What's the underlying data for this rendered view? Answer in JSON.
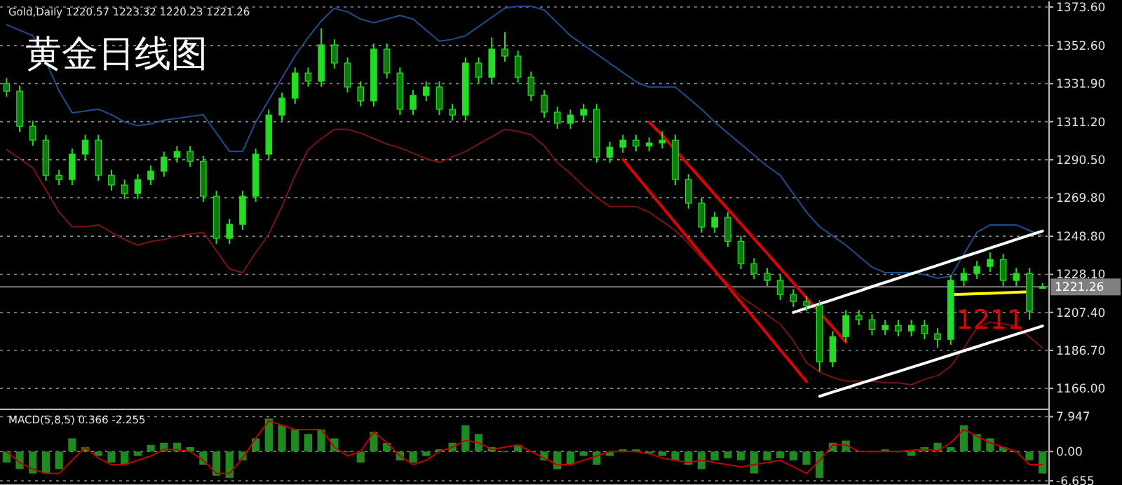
{
  "chart_data": [
    {
      "type": "candlestick",
      "title": "黄金日线图",
      "color": "#22dd22",
      "grid": "y",
      "tick_labels": "y",
      "annotations": [
        "Gold,Daily 1220.57 1223.32 1220.23 1221.26",
        {
          "text": "1211",
          "y": 1204
        }
      ],
      "ylim": [
        1155.4,
        1375.9
      ],
      "yticks": [
        {
          "value": 1373.6,
          "label": "1373.60"
        },
        {
          "value": 1352.6,
          "label": "1352.60"
        },
        {
          "value": 1331.9,
          "label": "1331.90"
        },
        {
          "value": 1311.2,
          "label": "1311.20"
        },
        {
          "value": 1290.5,
          "label": "1290.50"
        },
        {
          "value": 1269.8,
          "label": "1269.80"
        },
        {
          "value": 1248.8,
          "label": "1248.80"
        },
        {
          "value": 1228.1,
          "label": "1228.10"
        },
        {
          "value": 1207.4,
          "label": "1207.40"
        },
        {
          "value": 1186.7,
          "label": "1186.70"
        },
        {
          "value": 1166.0,
          "label": "1166.00"
        }
      ],
      "ref_lines": [
        {
          "axis": "y",
          "value": 1221.26,
          "label": "1221.26",
          "color": "#808080"
        }
      ],
      "categories": [
        null,
        null,
        null,
        null,
        null,
        null,
        null,
        null,
        null,
        null,
        null,
        null,
        null,
        null,
        null,
        null,
        null,
        null,
        null,
        null,
        null,
        null,
        null,
        null,
        null,
        null,
        null,
        null,
        null,
        null,
        null,
        null,
        null,
        null,
        null,
        null,
        null,
        null,
        null,
        null,
        null,
        null,
        null,
        null,
        null,
        null,
        null,
        null,
        null,
        null,
        null,
        null,
        null,
        null,
        null,
        null,
        null,
        null,
        null,
        null,
        null,
        null,
        null,
        null,
        null,
        null,
        null,
        null,
        null,
        null,
        null,
        null,
        null,
        null,
        null,
        null,
        null,
        null,
        null,
        null
      ],
      "ohlc": [
        [
          1332.0,
          1335.0,
          1324.8,
          1327.8
        ],
        [
          1327.8,
          1330.8,
          1305.7,
          1308.7
        ],
        [
          1308.7,
          1311.7,
          1298.1,
          1301.1
        ],
        [
          1301.1,
          1304.1,
          1279.0,
          1282.0
        ],
        [
          1282.0,
          1285.0,
          1276.7,
          1279.7
        ],
        [
          1279.7,
          1296.5,
          1276.7,
          1293.5
        ],
        [
          1293.5,
          1304.1,
          1290.5,
          1301.1
        ],
        [
          1301.1,
          1304.1,
          1279.0,
          1282.0
        ],
        [
          1282.0,
          1285.0,
          1273.7,
          1276.7
        ],
        [
          1276.7,
          1279.7,
          1269.1,
          1272.1
        ],
        [
          1272.1,
          1282.7,
          1269.1,
          1279.7
        ],
        [
          1279.7,
          1287.3,
          1276.7,
          1284.3
        ],
        [
          1284.3,
          1294.9,
          1281.3,
          1291.9
        ],
        [
          1291.9,
          1298.0,
          1288.9,
          1295.0
        ],
        [
          1295.0,
          1298.0,
          1286.6,
          1289.6
        ],
        [
          1289.6,
          1292.6,
          1267.6,
          1270.6
        ],
        [
          1270.6,
          1273.6,
          1244.7,
          1247.7
        ],
        [
          1247.7,
          1258.3,
          1244.7,
          1255.3
        ],
        [
          1255.3,
          1273.6,
          1252.3,
          1270.6
        ],
        [
          1270.6,
          1296.5,
          1267.6,
          1293.5
        ],
        [
          1293.5,
          1317.8,
          1290.5,
          1314.8
        ],
        [
          1314.8,
          1327.0,
          1311.8,
          1324.0
        ],
        [
          1324.0,
          1340.7,
          1321.0,
          1337.7
        ],
        [
          1337.7,
          1340.7,
          1330.2,
          1333.2
        ],
        [
          1333.2,
          1362.0,
          1330.2,
          1353.0
        ],
        [
          1353.0,
          1356.0,
          1340.1,
          1343.1
        ],
        [
          1343.1,
          1346.1,
          1327.1,
          1330.1
        ],
        [
          1330.1,
          1333.1,
          1319.5,
          1322.5
        ],
        [
          1322.5,
          1353.7,
          1319.5,
          1350.7
        ],
        [
          1350.7,
          1353.7,
          1334.7,
          1337.7
        ],
        [
          1337.7,
          1340.7,
          1314.9,
          1317.9
        ],
        [
          1317.9,
          1328.5,
          1314.9,
          1325.5
        ],
        [
          1325.5,
          1333.1,
          1322.5,
          1330.1
        ],
        [
          1330.1,
          1333.1,
          1314.9,
          1317.9
        ],
        [
          1317.9,
          1320.9,
          1311.8,
          1314.8
        ],
        [
          1314.8,
          1346.1,
          1311.8,
          1343.1
        ],
        [
          1343.1,
          1346.1,
          1332.4,
          1335.4
        ],
        [
          1335.4,
          1357.0,
          1332.4,
          1350.7
        ],
        [
          1350.7,
          1360.0,
          1343.9,
          1346.9
        ],
        [
          1346.9,
          1349.9,
          1332.4,
          1335.4
        ],
        [
          1335.4,
          1338.4,
          1322.5,
          1325.5
        ],
        [
          1325.5,
          1328.5,
          1313.4,
          1316.4
        ],
        [
          1316.4,
          1319.4,
          1307.3,
          1310.3
        ],
        [
          1310.3,
          1317.8,
          1307.3,
          1314.8
        ],
        [
          1314.8,
          1320.9,
          1311.8,
          1317.9
        ],
        [
          1317.9,
          1320.9,
          1288.9,
          1291.9
        ],
        [
          1291.9,
          1300.3,
          1288.9,
          1297.3
        ],
        [
          1297.3,
          1304.1,
          1294.3,
          1301.1
        ],
        [
          1301.1,
          1304.1,
          1295.0,
          1298.0
        ],
        [
          1298.0,
          1302.6,
          1295.0,
          1299.6
        ],
        [
          1299.6,
          1306.0,
          1296.6,
          1301.1
        ],
        [
          1301.1,
          1304.1,
          1276.7,
          1279.7
        ],
        [
          1279.7,
          1282.7,
          1263.8,
          1266.8
        ],
        [
          1266.8,
          1269.8,
          1250.8,
          1253.8
        ],
        [
          1253.8,
          1262.1,
          1250.8,
          1259.1
        ],
        [
          1259.1,
          1262.1,
          1243.1,
          1246.1
        ],
        [
          1246.1,
          1249.1,
          1230.9,
          1233.9
        ],
        [
          1233.9,
          1236.9,
          1225.6,
          1228.6
        ],
        [
          1228.6,
          1231.6,
          1221.8,
          1224.8
        ],
        [
          1224.8,
          1227.8,
          1214.1,
          1217.1
        ],
        [
          1217.1,
          1220.1,
          1210.3,
          1213.3
        ],
        [
          1213.3,
          1216.3,
          1208.0,
          1211.0
        ],
        [
          1211.0,
          1214.0,
          1175.2,
          1180.5
        ],
        [
          1180.5,
          1197.2,
          1177.5,
          1194.2
        ],
        [
          1194.2,
          1208.7,
          1191.2,
          1205.7
        ],
        [
          1205.7,
          1208.7,
          1200.4,
          1203.4
        ],
        [
          1203.4,
          1206.4,
          1195.0,
          1198.0
        ],
        [
          1198.0,
          1203.3,
          1195.0,
          1200.3
        ],
        [
          1200.3,
          1203.3,
          1194.3,
          1197.3
        ],
        [
          1197.3,
          1203.3,
          1194.3,
          1200.3
        ],
        [
          1200.3,
          1203.3,
          1192.8,
          1195.8
        ],
        [
          1195.8,
          1198.8,
          1188.1,
          1192.7
        ],
        [
          1192.7,
          1227.8,
          1189.7,
          1224.8
        ],
        [
          1224.8,
          1231.6,
          1221.8,
          1228.6
        ],
        [
          1228.6,
          1235.4,
          1225.6,
          1232.4
        ],
        [
          1232.4,
          1240.0,
          1229.4,
          1236.2
        ],
        [
          1236.2,
          1239.2,
          1221.8,
          1224.8
        ],
        [
          1224.8,
          1231.6,
          1221.8,
          1228.6
        ],
        [
          1228.6,
          1231.6,
          1203.4,
          1208.0
        ],
        [
          1220.57,
          1223.32,
          1220.23,
          1221.26
        ]
      ],
      "series": [
        {
          "type": "line",
          "color": "#1f4e8c",
          "values": [
            1364,
            1361,
            1358,
            1344,
            1328,
            1316,
            1317,
            1318,
            1315,
            1311,
            1309,
            1310,
            1312,
            1313,
            1314,
            1315,
            1305,
            1295,
            1295,
            1311,
            1323,
            1335,
            1347,
            1357,
            1366,
            1373,
            1371,
            1367,
            1365,
            1367,
            1369,
            1367,
            1361,
            1355,
            1356,
            1358,
            1363,
            1368,
            1373,
            1374,
            1374,
            1372,
            1365,
            1358,
            1353,
            1348,
            1343,
            1338,
            1333,
            1330,
            1330,
            1330,
            1324,
            1318,
            1311,
            1305,
            1299,
            1293,
            1287,
            1282,
            1272,
            1262,
            1254,
            1249,
            1244,
            1238,
            1232,
            1229,
            1229,
            1229,
            1228,
            1226,
            1227,
            1239,
            1251,
            1255,
            1255,
            1255,
            1252,
            1249
          ]
        },
        {
          "type": "line",
          "color": "#7a1414",
          "values": [
            1296,
            1291,
            1286,
            1274,
            1262,
            1254,
            1254,
            1255,
            1251,
            1247,
            1244,
            1246,
            1247,
            1249,
            1250,
            1251,
            1241,
            1231,
            1229,
            1240,
            1250,
            1265,
            1282,
            1296,
            1302,
            1307,
            1307,
            1305,
            1302,
            1299,
            1297,
            1294,
            1291,
            1289,
            1292,
            1295,
            1299,
            1303,
            1307,
            1306,
            1304,
            1298,
            1289,
            1283,
            1276,
            1270,
            1265,
            1265,
            1265,
            1262,
            1257,
            1252,
            1245,
            1237,
            1230,
            1223,
            1216,
            1211,
            1206,
            1201,
            1192,
            1180,
            1175,
            1172,
            1170,
            1170,
            1170,
            1169,
            1169,
            1168,
            1171,
            1173,
            1178,
            1188,
            1199,
            1202,
            1201,
            1200,
            1194,
            1188
          ]
        },
        {
          "type": "line",
          "color": "#dd0000",
          "values": [
            null,
            null,
            null,
            null,
            null,
            null,
            null,
            null,
            null,
            null,
            null,
            null,
            null,
            null,
            null,
            null,
            null,
            null,
            null,
            null,
            null,
            null,
            null,
            null,
            null,
            null,
            null,
            null,
            null,
            null,
            null,
            null,
            null,
            null,
            null,
            null,
            null,
            null,
            null,
            null,
            null,
            null,
            null,
            null,
            null,
            null,
            null,
            null,
            null,
            1311.0,
            1303.8,
            1295.8,
            1287.7,
            1279.7,
            1271.6,
            1263.6,
            1255.6,
            1247.5,
            1239.5,
            1231.4,
            1223.4,
            1215.4,
            1207.3,
            1199.3,
            1191.2,
            null,
            null,
            null,
            null,
            null,
            null,
            null,
            null,
            null,
            null,
            null,
            null,
            null,
            null,
            null
          ]
        },
        {
          "type": "line",
          "color": "#dd0000",
          "values": [
            null,
            null,
            null,
            null,
            null,
            null,
            null,
            null,
            null,
            null,
            null,
            null,
            null,
            null,
            null,
            null,
            null,
            null,
            null,
            null,
            null,
            null,
            null,
            null,
            null,
            null,
            null,
            null,
            null,
            null,
            null,
            null,
            null,
            null,
            null,
            null,
            null,
            null,
            null,
            null,
            null,
            null,
            null,
            null,
            null,
            null,
            null,
            1290.7,
            1282.0,
            1273.4,
            1264.8,
            1256.1,
            1247.5,
            1238.8,
            1230.2,
            1221.6,
            1212.9,
            1204.3,
            1195.7,
            1187.0,
            1178.4,
            1169.7,
            null,
            null,
            null,
            null,
            null,
            null,
            null,
            null,
            null,
            null,
            null,
            null,
            null,
            null,
            null,
            null,
            null,
            null
          ]
        },
        {
          "type": "line",
          "color": "#ffffff",
          "values": [
            null,
            null,
            null,
            null,
            null,
            null,
            null,
            null,
            null,
            null,
            null,
            null,
            null,
            null,
            null,
            null,
            null,
            null,
            null,
            null,
            null,
            null,
            null,
            null,
            null,
            null,
            null,
            null,
            null,
            null,
            null,
            null,
            null,
            null,
            null,
            null,
            null,
            null,
            null,
            null,
            null,
            null,
            null,
            null,
            null,
            null,
            null,
            null,
            null,
            null,
            null,
            null,
            null,
            null,
            null,
            null,
            null,
            null,
            null,
            null,
            1207.3,
            1209.7,
            1212.0,
            1214.3,
            1216.7,
            1219.0,
            1221.4,
            1223.7,
            1226.0,
            1228.4,
            1230.7,
            1233.0,
            1235.4,
            1237.7,
            1240.0,
            1242.4,
            1244.7,
            1247.1,
            1249.4,
            1251.7
          ]
        },
        {
          "type": "line",
          "color": "#ffffff",
          "values": [
            null,
            null,
            null,
            null,
            null,
            null,
            null,
            null,
            null,
            null,
            null,
            null,
            null,
            null,
            null,
            null,
            null,
            null,
            null,
            null,
            null,
            null,
            null,
            null,
            null,
            null,
            null,
            null,
            null,
            null,
            null,
            null,
            null,
            null,
            null,
            null,
            null,
            null,
            null,
            null,
            null,
            null,
            null,
            null,
            null,
            null,
            null,
            null,
            null,
            null,
            null,
            null,
            null,
            null,
            null,
            null,
            null,
            null,
            null,
            null,
            null,
            null,
            1161.7,
            1164.0,
            1166.2,
            1168.5,
            1170.7,
            1173.0,
            1175.2,
            1177.5,
            1179.7,
            1182.0,
            1184.2,
            1186.5,
            1188.7,
            1191.0,
            1193.2,
            1195.5,
            1197.7,
            1200.0
          ]
        },
        {
          "type": "line",
          "color": "#ffff00",
          "values": [
            null,
            null,
            null,
            null,
            null,
            null,
            null,
            null,
            null,
            null,
            null,
            null,
            null,
            null,
            null,
            null,
            null,
            null,
            null,
            null,
            null,
            null,
            null,
            null,
            null,
            null,
            null,
            null,
            null,
            null,
            null,
            null,
            null,
            null,
            null,
            null,
            null,
            null,
            null,
            null,
            null,
            null,
            null,
            null,
            null,
            null,
            null,
            null,
            null,
            null,
            null,
            null,
            null,
            null,
            null,
            null,
            null,
            null,
            null,
            null,
            null,
            null,
            null,
            null,
            null,
            null,
            null,
            null,
            null,
            null,
            null,
            null,
            1217.1,
            1217.3,
            1217.6,
            1217.8,
            1218.1,
            1218.3,
            1218.6,
            null
          ]
        }
      ]
    },
    {
      "type": "bar",
      "grid": "y",
      "tick_labels": "y",
      "annotations": [
        "MACD(5,8,5) 0.366 -2.255"
      ],
      "ylim": [
        -7.3,
        9.3
      ],
      "yticks": [
        {
          "value": 7.947,
          "label": "7.947"
        },
        {
          "value": 0,
          "label": "0.00"
        },
        {
          "value": -6.655,
          "label": "-6.655"
        }
      ],
      "categories": [
        null,
        null,
        null,
        null,
        null,
        null,
        null,
        null,
        null,
        null,
        null,
        null,
        null,
        null,
        null,
        null,
        null,
        null,
        null,
        null,
        null,
        null,
        null,
        null,
        null,
        null,
        null,
        null,
        null,
        null,
        null,
        null,
        null,
        null,
        null,
        null,
        null,
        null,
        null,
        null,
        null,
        null,
        null,
        null,
        null,
        null,
        null,
        null,
        null,
        null,
        null,
        null,
        null,
        null,
        null,
        null,
        null,
        null,
        null,
        null,
        null,
        null,
        null,
        null,
        null,
        null,
        null,
        null,
        null,
        null,
        null,
        null,
        null,
        null,
        null,
        null,
        null,
        null,
        null,
        null
      ],
      "series": [
        {
          "type": "bar",
          "color": "#1f8a1f",
          "values": [
            -2.5,
            -4,
            -5,
            -5,
            -4,
            3,
            1,
            -1,
            -2.5,
            -3,
            -1,
            1.5,
            2,
            2,
            1,
            -3,
            -5.5,
            -6,
            -2,
            3,
            7.5,
            6,
            5,
            4,
            5,
            3,
            0,
            -2.5,
            4.5,
            2,
            -2,
            -2.5,
            -1,
            0.5,
            2,
            6,
            4,
            1,
            0,
            1.5,
            0,
            -2,
            -4,
            -3,
            -1,
            -3,
            -1,
            0.5,
            0.5,
            -0.5,
            -1,
            -2,
            -3,
            -4,
            -2,
            -1.5,
            -2,
            -5,
            -2,
            -1.5,
            -2,
            -3,
            -6,
            2,
            2.5,
            null,
            0,
            0.5,
            0,
            -1,
            1,
            2,
            1,
            6,
            4,
            3,
            1,
            0,
            -2,
            -5
          ]
        },
        {
          "type": "line",
          "color": "#c00000",
          "values": [
            0,
            -2.5,
            -4,
            -5,
            -5,
            -2,
            1,
            -1.5,
            -3,
            -3,
            -2,
            -1,
            0.5,
            0.5,
            0,
            -2,
            -5,
            -5,
            -1.5,
            3,
            7,
            6,
            5,
            5,
            5,
            1,
            -1,
            0,
            4.5,
            2,
            -1,
            -3,
            -2,
            0,
            1,
            2.5,
            2,
            0.5,
            1,
            1.5,
            0,
            -1.5,
            -3,
            -3,
            -2,
            -1,
            0,
            0,
            0,
            -0.5,
            -1.5,
            -2,
            -2.5,
            -2,
            -2.5,
            -3,
            -3.5,
            -3,
            -2.5,
            -2,
            -3.5,
            -5,
            -2,
            1.5,
            1.5,
            0,
            0,
            0,
            0,
            0.3,
            0.5,
            0.2,
            2,
            5,
            3.5,
            2,
            1,
            0,
            -3,
            -3
          ]
        }
      ]
    }
  ]
}
